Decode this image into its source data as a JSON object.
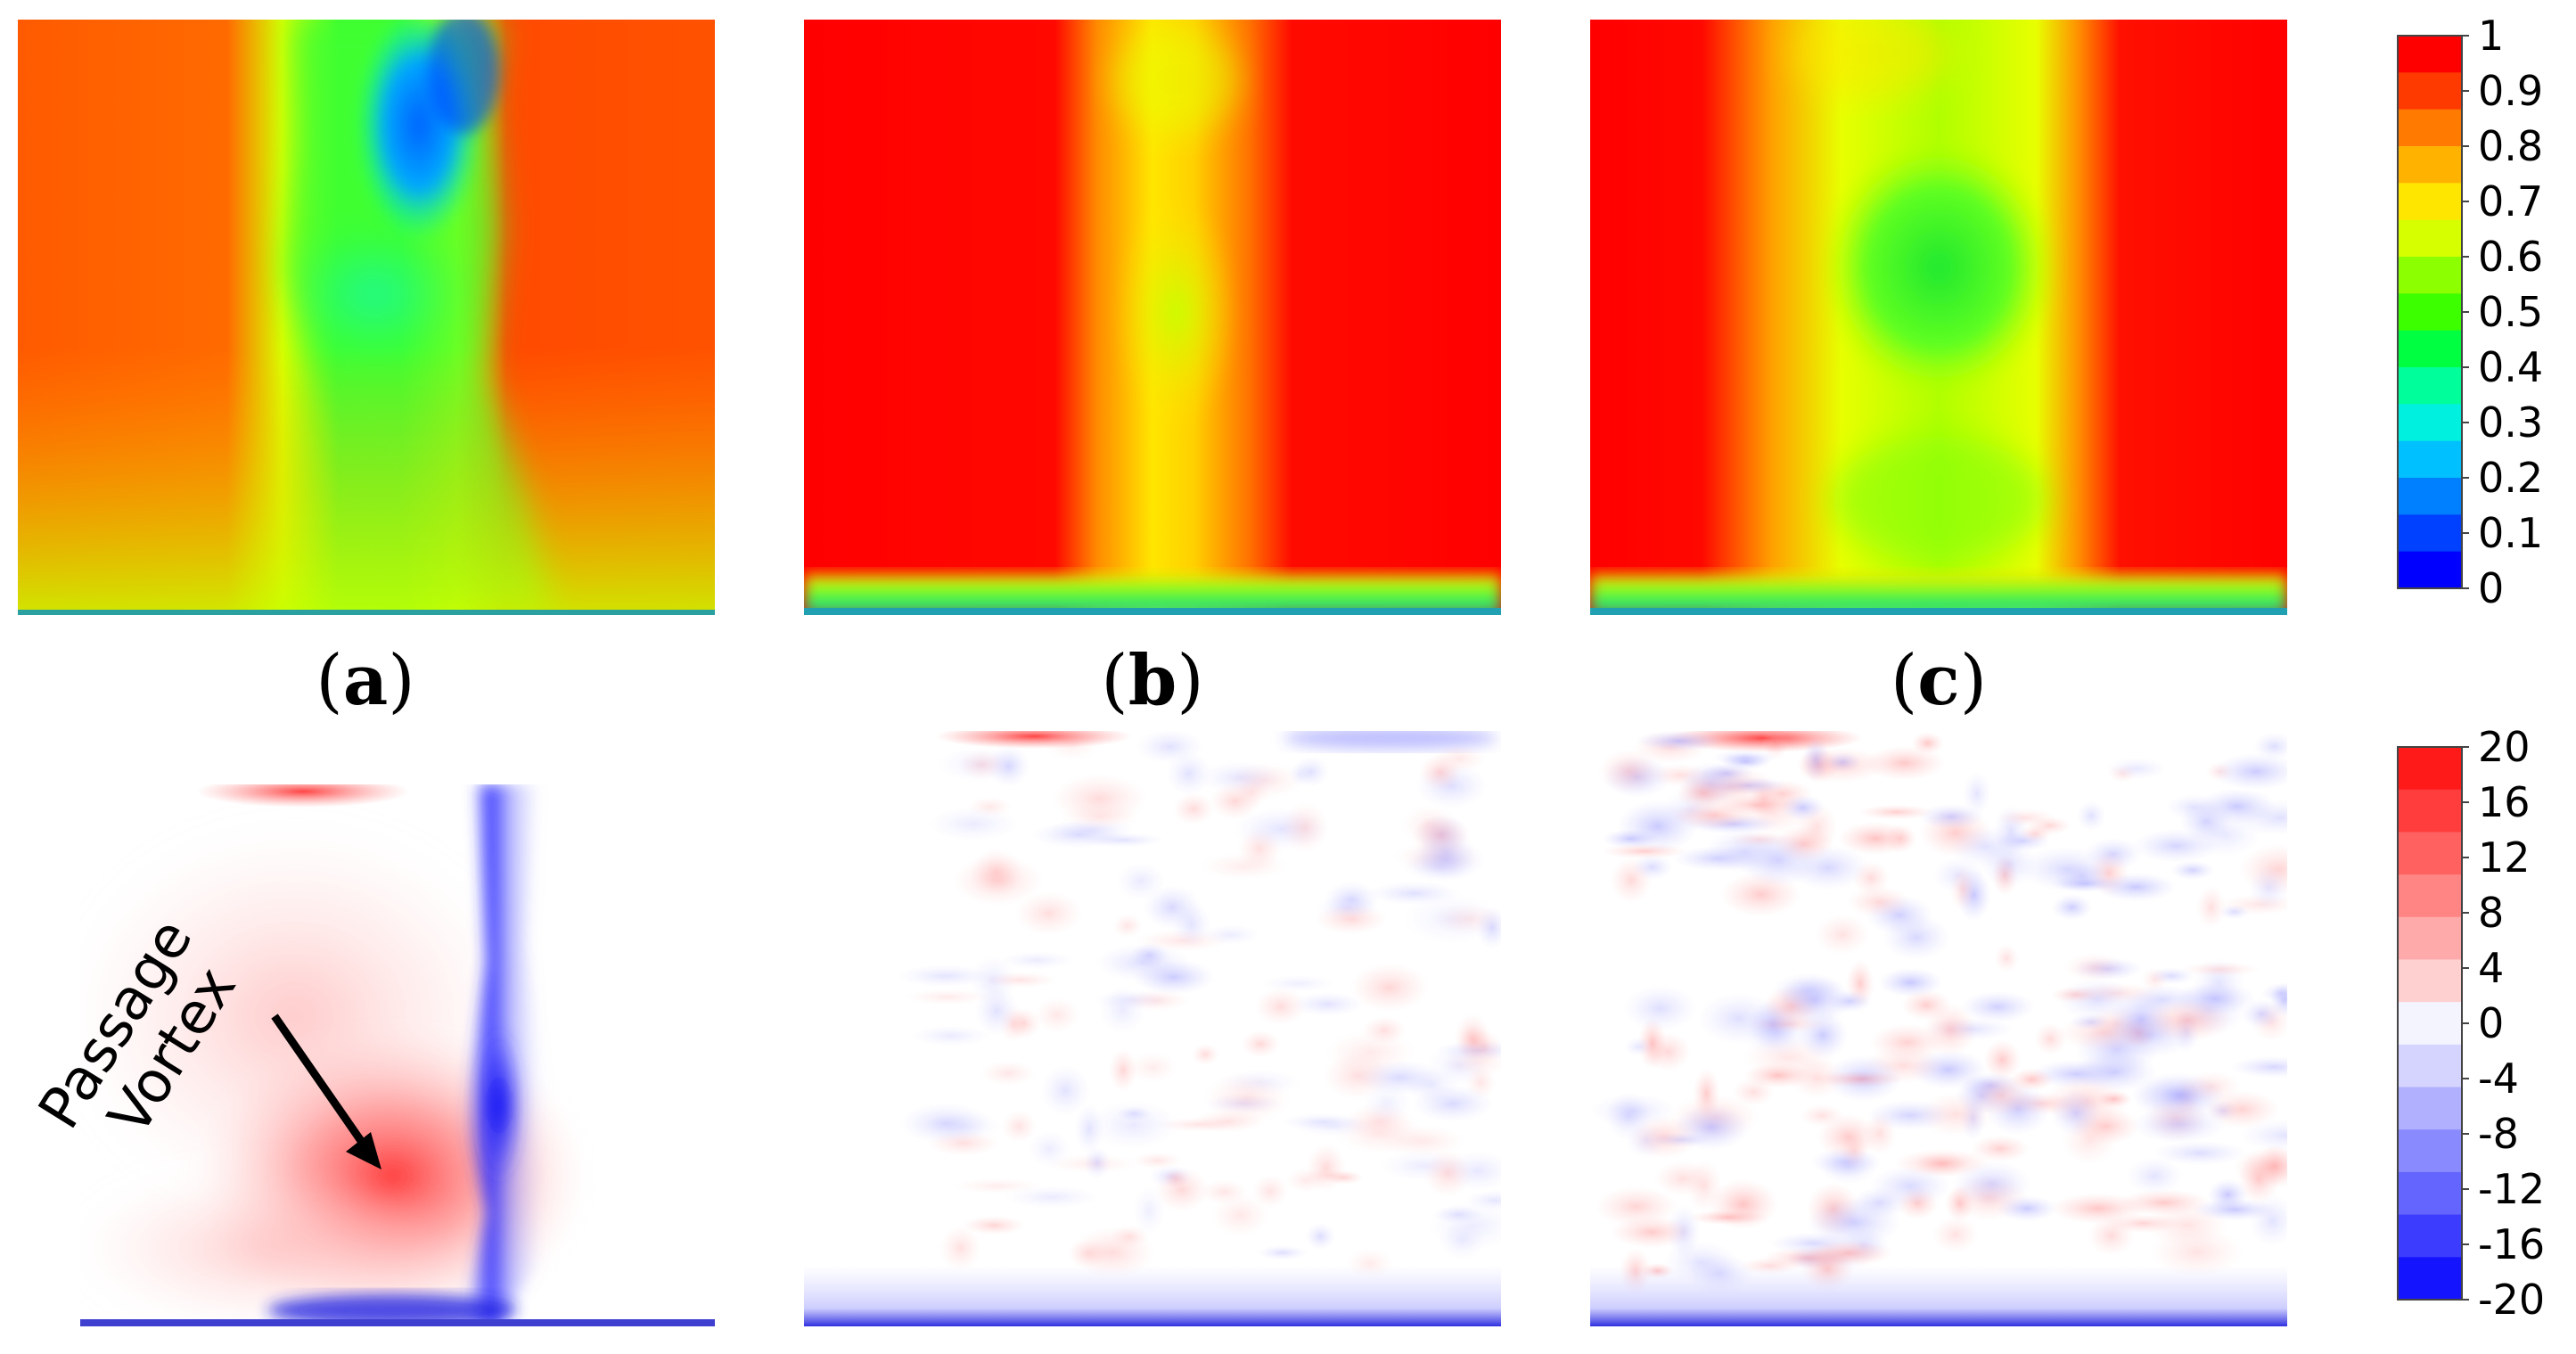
{
  "chart_data": [
    {
      "type": "heatmap",
      "row": "top",
      "panels": [
        {
          "label": "a",
          "description_visual": "uniform high values on both sides, low-value band in center with blue core near top"
        },
        {
          "label": "b",
          "description_visual": "red sides, yellow-orange central band, green strip at bottom"
        },
        {
          "label": "c",
          "description_visual": "red sides, wide yellow band with green core in center, green strip at bottom"
        }
      ],
      "colorbar": {
        "ticks": [
          "1",
          "0.9",
          "0.8",
          "0.7",
          "0.6",
          "0.5",
          "0.4",
          "0.3",
          "0.2",
          "0.1",
          "0"
        ],
        "range": [
          0,
          1
        ],
        "colors": [
          "#ff0000",
          "#ff3a00",
          "#ff7a00",
          "#ffb300",
          "#ffe600",
          "#d6ff00",
          "#8cff00",
          "#3cff00",
          "#00ff40",
          "#00ff9a",
          "#00f0e0",
          "#00c0ff",
          "#0080ff",
          "#0040ff",
          "#0000ff"
        ]
      }
    },
    {
      "type": "heatmap",
      "row": "bottom",
      "panels": [
        {
          "label": "a",
          "annotation": {
            "line1": "Passage",
            "line2": "Vortex"
          }
        },
        {
          "label": "b"
        },
        {
          "label": "c"
        }
      ],
      "colorbar": {
        "ticks": [
          "20",
          "16",
          "12",
          "8",
          "4",
          "0",
          "-4",
          "-8",
          "-12",
          "-16",
          "-20"
        ],
        "range": [
          -20,
          20
        ],
        "colors": [
          "#ff1a1a",
          "#ff3d3d",
          "#ff6060",
          "#ff8585",
          "#ffaaaa",
          "#ffd0d0",
          "#f4f4ff",
          "#d4d4ff",
          "#b0b0ff",
          "#8a8aff",
          "#6464ff",
          "#3c3cff",
          "#1414ff"
        ]
      }
    }
  ],
  "captions": {
    "a": {
      "open": "(",
      "letter": "a",
      "close": ")"
    },
    "b": {
      "open": "(",
      "letter": "b",
      "close": ")"
    },
    "c": {
      "open": "(",
      "letter": "c",
      "close": ")"
    }
  }
}
